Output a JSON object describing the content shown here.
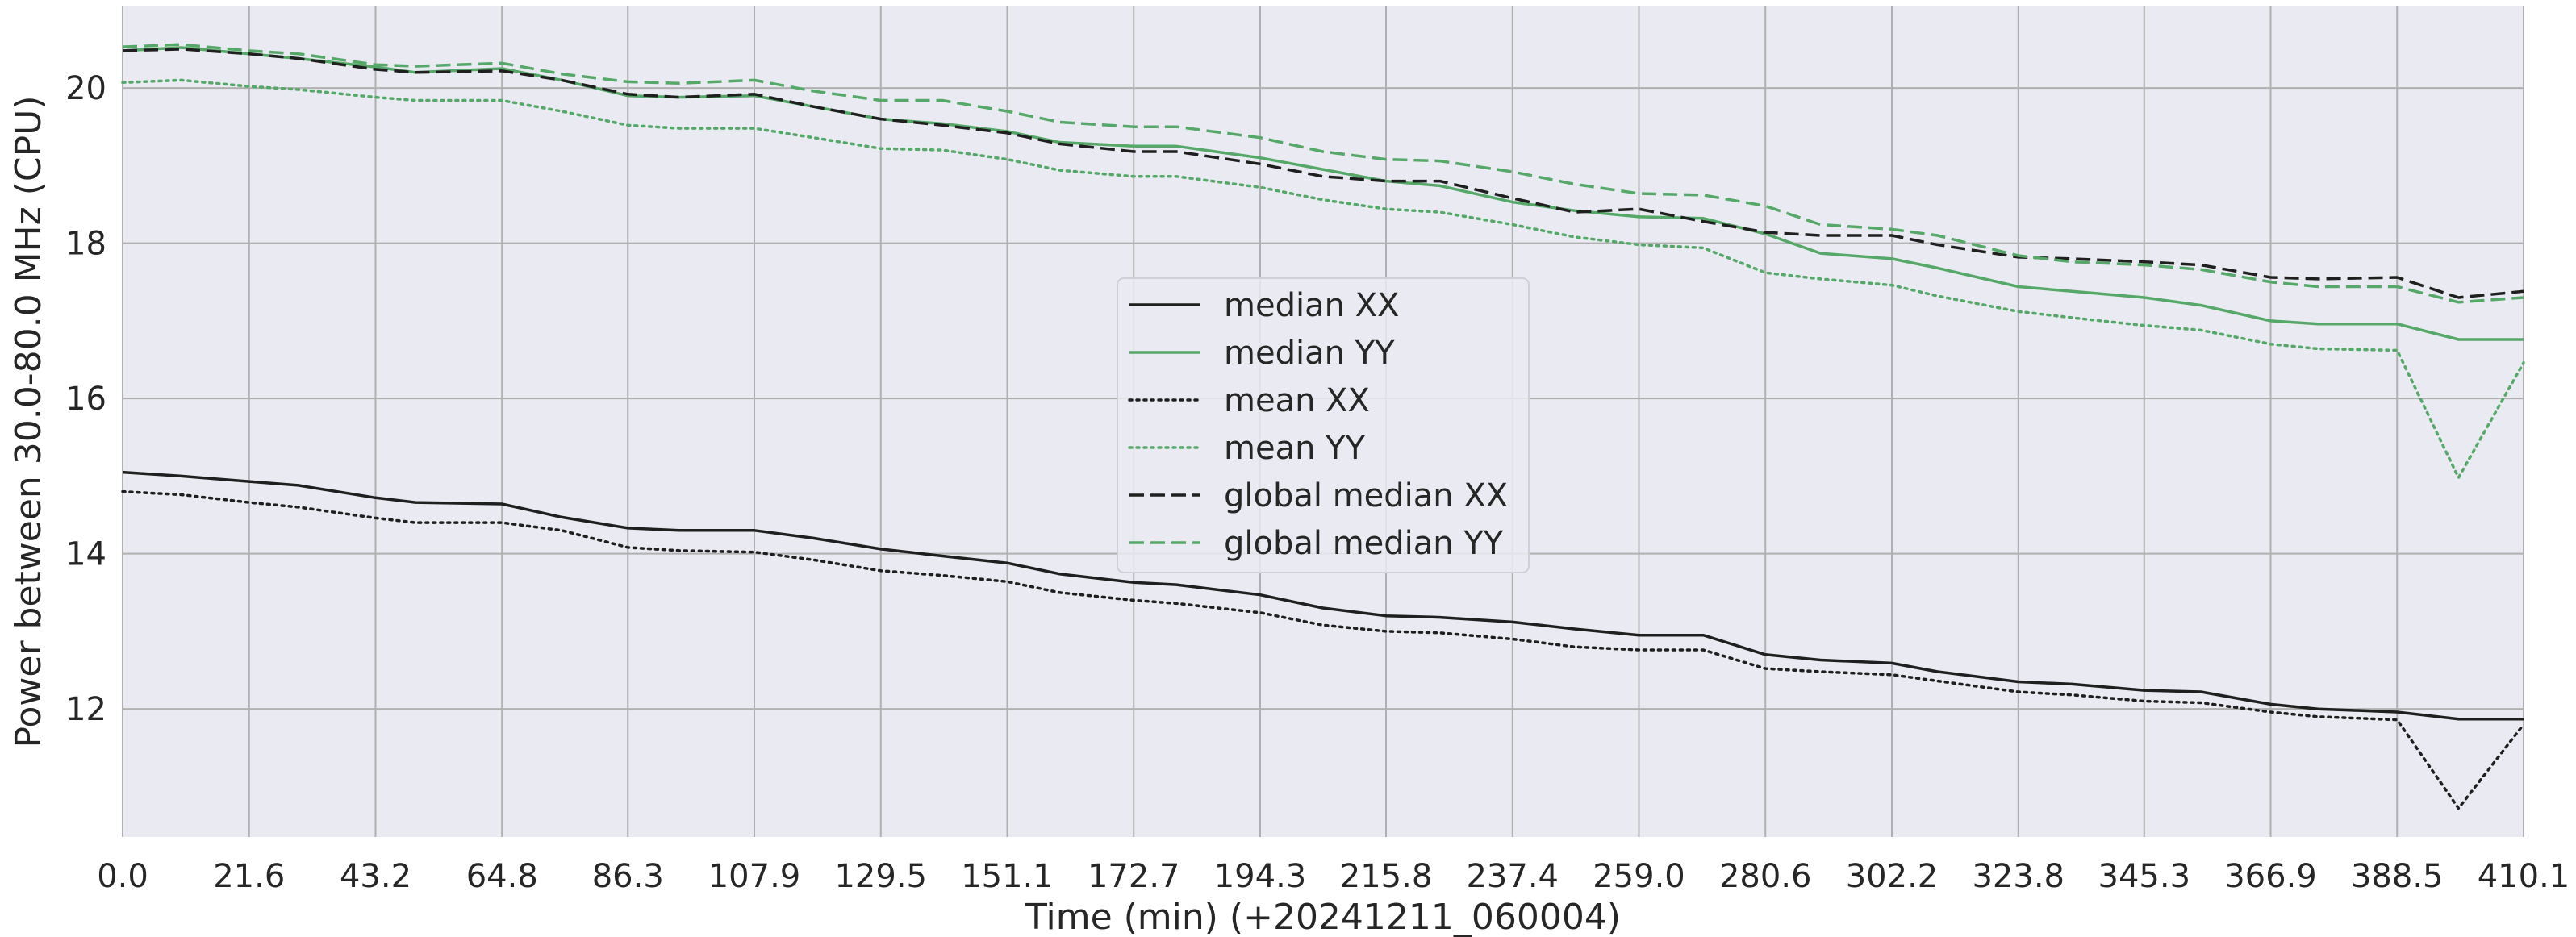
{
  "chart_data": {
    "type": "line",
    "title": "",
    "xlabel": "Time (min) (+20241211_060004)",
    "ylabel": "Power between 30.0-80.0 MHz  (CPU)",
    "xlim": [
      0,
      410.1
    ],
    "ylim": [
      10.35,
      21.05
    ],
    "grid": true,
    "legend_position": "center",
    "xticks": [
      0.0,
      21.6,
      43.2,
      64.8,
      86.3,
      107.9,
      129.5,
      151.1,
      172.7,
      194.3,
      215.8,
      237.4,
      259.0,
      280.6,
      302.2,
      323.8,
      345.3,
      366.9,
      388.5,
      410.1
    ],
    "xtick_labels": [
      "0.0",
      "21.6",
      "43.2",
      "64.8",
      "86.3",
      "107.9",
      "129.5",
      "151.1",
      "172.7",
      "194.3",
      "215.8",
      "237.4",
      "259.0",
      "280.6",
      "302.2",
      "323.8",
      "345.3",
      "366.9",
      "388.5",
      "410.1"
    ],
    "yticks": [
      12,
      14,
      16,
      18,
      20
    ],
    "ytick_labels": [
      "12",
      "14",
      "16",
      "18",
      "20"
    ],
    "x": [
      0,
      10,
      21.6,
      30,
      43.2,
      50,
      64.8,
      75,
      86.3,
      95,
      107.9,
      118,
      129.5,
      140,
      151.1,
      160,
      172.7,
      180,
      194.3,
      205,
      215.8,
      225,
      237.4,
      248,
      259.0,
      270,
      280.6,
      290,
      302.2,
      310,
      323.8,
      333,
      345.3,
      355,
      366.9,
      375,
      388.5,
      399,
      410.1
    ],
    "series": [
      {
        "name": "median XX",
        "color": "#1f1f1f",
        "style": "solid",
        "values": [
          15.05,
          15.0,
          14.93,
          14.88,
          14.72,
          14.66,
          14.64,
          14.47,
          14.33,
          14.3,
          14.3,
          14.2,
          14.06,
          13.97,
          13.88,
          13.74,
          13.63,
          13.6,
          13.47,
          13.3,
          13.2,
          13.18,
          13.12,
          13.03,
          12.95,
          12.95,
          12.7,
          12.63,
          12.59,
          12.48,
          12.35,
          12.32,
          12.24,
          12.22,
          12.06,
          12.0,
          11.96,
          11.87,
          11.87
        ]
      },
      {
        "name": "median YY",
        "color": "#55a868",
        "style": "solid",
        "values": [
          20.48,
          20.52,
          20.44,
          20.38,
          20.27,
          20.2,
          20.25,
          20.1,
          19.9,
          19.88,
          19.9,
          19.76,
          19.6,
          19.54,
          19.44,
          19.3,
          19.25,
          19.25,
          19.1,
          18.95,
          18.8,
          18.74,
          18.53,
          18.42,
          18.34,
          18.32,
          18.12,
          17.87,
          17.8,
          17.68,
          17.44,
          17.38,
          17.3,
          17.2,
          17.0,
          16.96,
          16.96,
          16.76,
          16.76
        ]
      },
      {
        "name": "mean XX",
        "color": "#1f1f1f",
        "style": "dotted",
        "values": [
          14.8,
          14.76,
          14.66,
          14.6,
          14.46,
          14.4,
          14.4,
          14.3,
          14.08,
          14.04,
          14.02,
          13.92,
          13.78,
          13.72,
          13.64,
          13.5,
          13.4,
          13.36,
          13.24,
          13.08,
          13.0,
          12.98,
          12.9,
          12.8,
          12.76,
          12.76,
          12.52,
          12.48,
          12.44,
          12.36,
          12.22,
          12.18,
          12.1,
          12.08,
          11.96,
          11.9,
          11.86,
          10.72,
          11.8
        ]
      },
      {
        "name": "mean YY",
        "color": "#55a868",
        "style": "dotted",
        "values": [
          20.07,
          20.1,
          20.02,
          19.98,
          19.88,
          19.84,
          19.84,
          19.7,
          19.52,
          19.48,
          19.48,
          19.36,
          19.22,
          19.2,
          19.08,
          18.94,
          18.86,
          18.86,
          18.72,
          18.56,
          18.44,
          18.4,
          18.24,
          18.08,
          17.98,
          17.94,
          17.62,
          17.54,
          17.46,
          17.32,
          17.12,
          17.04,
          16.94,
          16.88,
          16.7,
          16.64,
          16.62,
          14.98,
          16.46
        ]
      },
      {
        "name": "global median XX",
        "color": "#1f1f1f",
        "style": "dashed",
        "values": [
          20.48,
          20.5,
          20.44,
          20.38,
          20.24,
          20.2,
          20.22,
          20.1,
          19.92,
          19.88,
          19.92,
          19.76,
          19.6,
          19.52,
          19.42,
          19.28,
          19.18,
          19.18,
          19.02,
          18.86,
          18.8,
          18.8,
          18.58,
          18.4,
          18.44,
          18.28,
          18.14,
          18.1,
          18.1,
          17.98,
          17.82,
          17.8,
          17.76,
          17.72,
          17.56,
          17.54,
          17.56,
          17.3,
          17.38
        ]
      },
      {
        "name": "global median YY",
        "color": "#55a868",
        "style": "dashed",
        "values": [
          20.53,
          20.56,
          20.48,
          20.44,
          20.3,
          20.28,
          20.32,
          20.18,
          20.08,
          20.06,
          20.1,
          19.96,
          19.84,
          19.84,
          19.7,
          19.56,
          19.5,
          19.5,
          19.36,
          19.18,
          19.08,
          19.06,
          18.92,
          18.76,
          18.64,
          18.62,
          18.48,
          18.24,
          18.18,
          18.1,
          17.84,
          17.76,
          17.72,
          17.66,
          17.5,
          17.44,
          17.44,
          17.24,
          17.3
        ]
      }
    ]
  }
}
